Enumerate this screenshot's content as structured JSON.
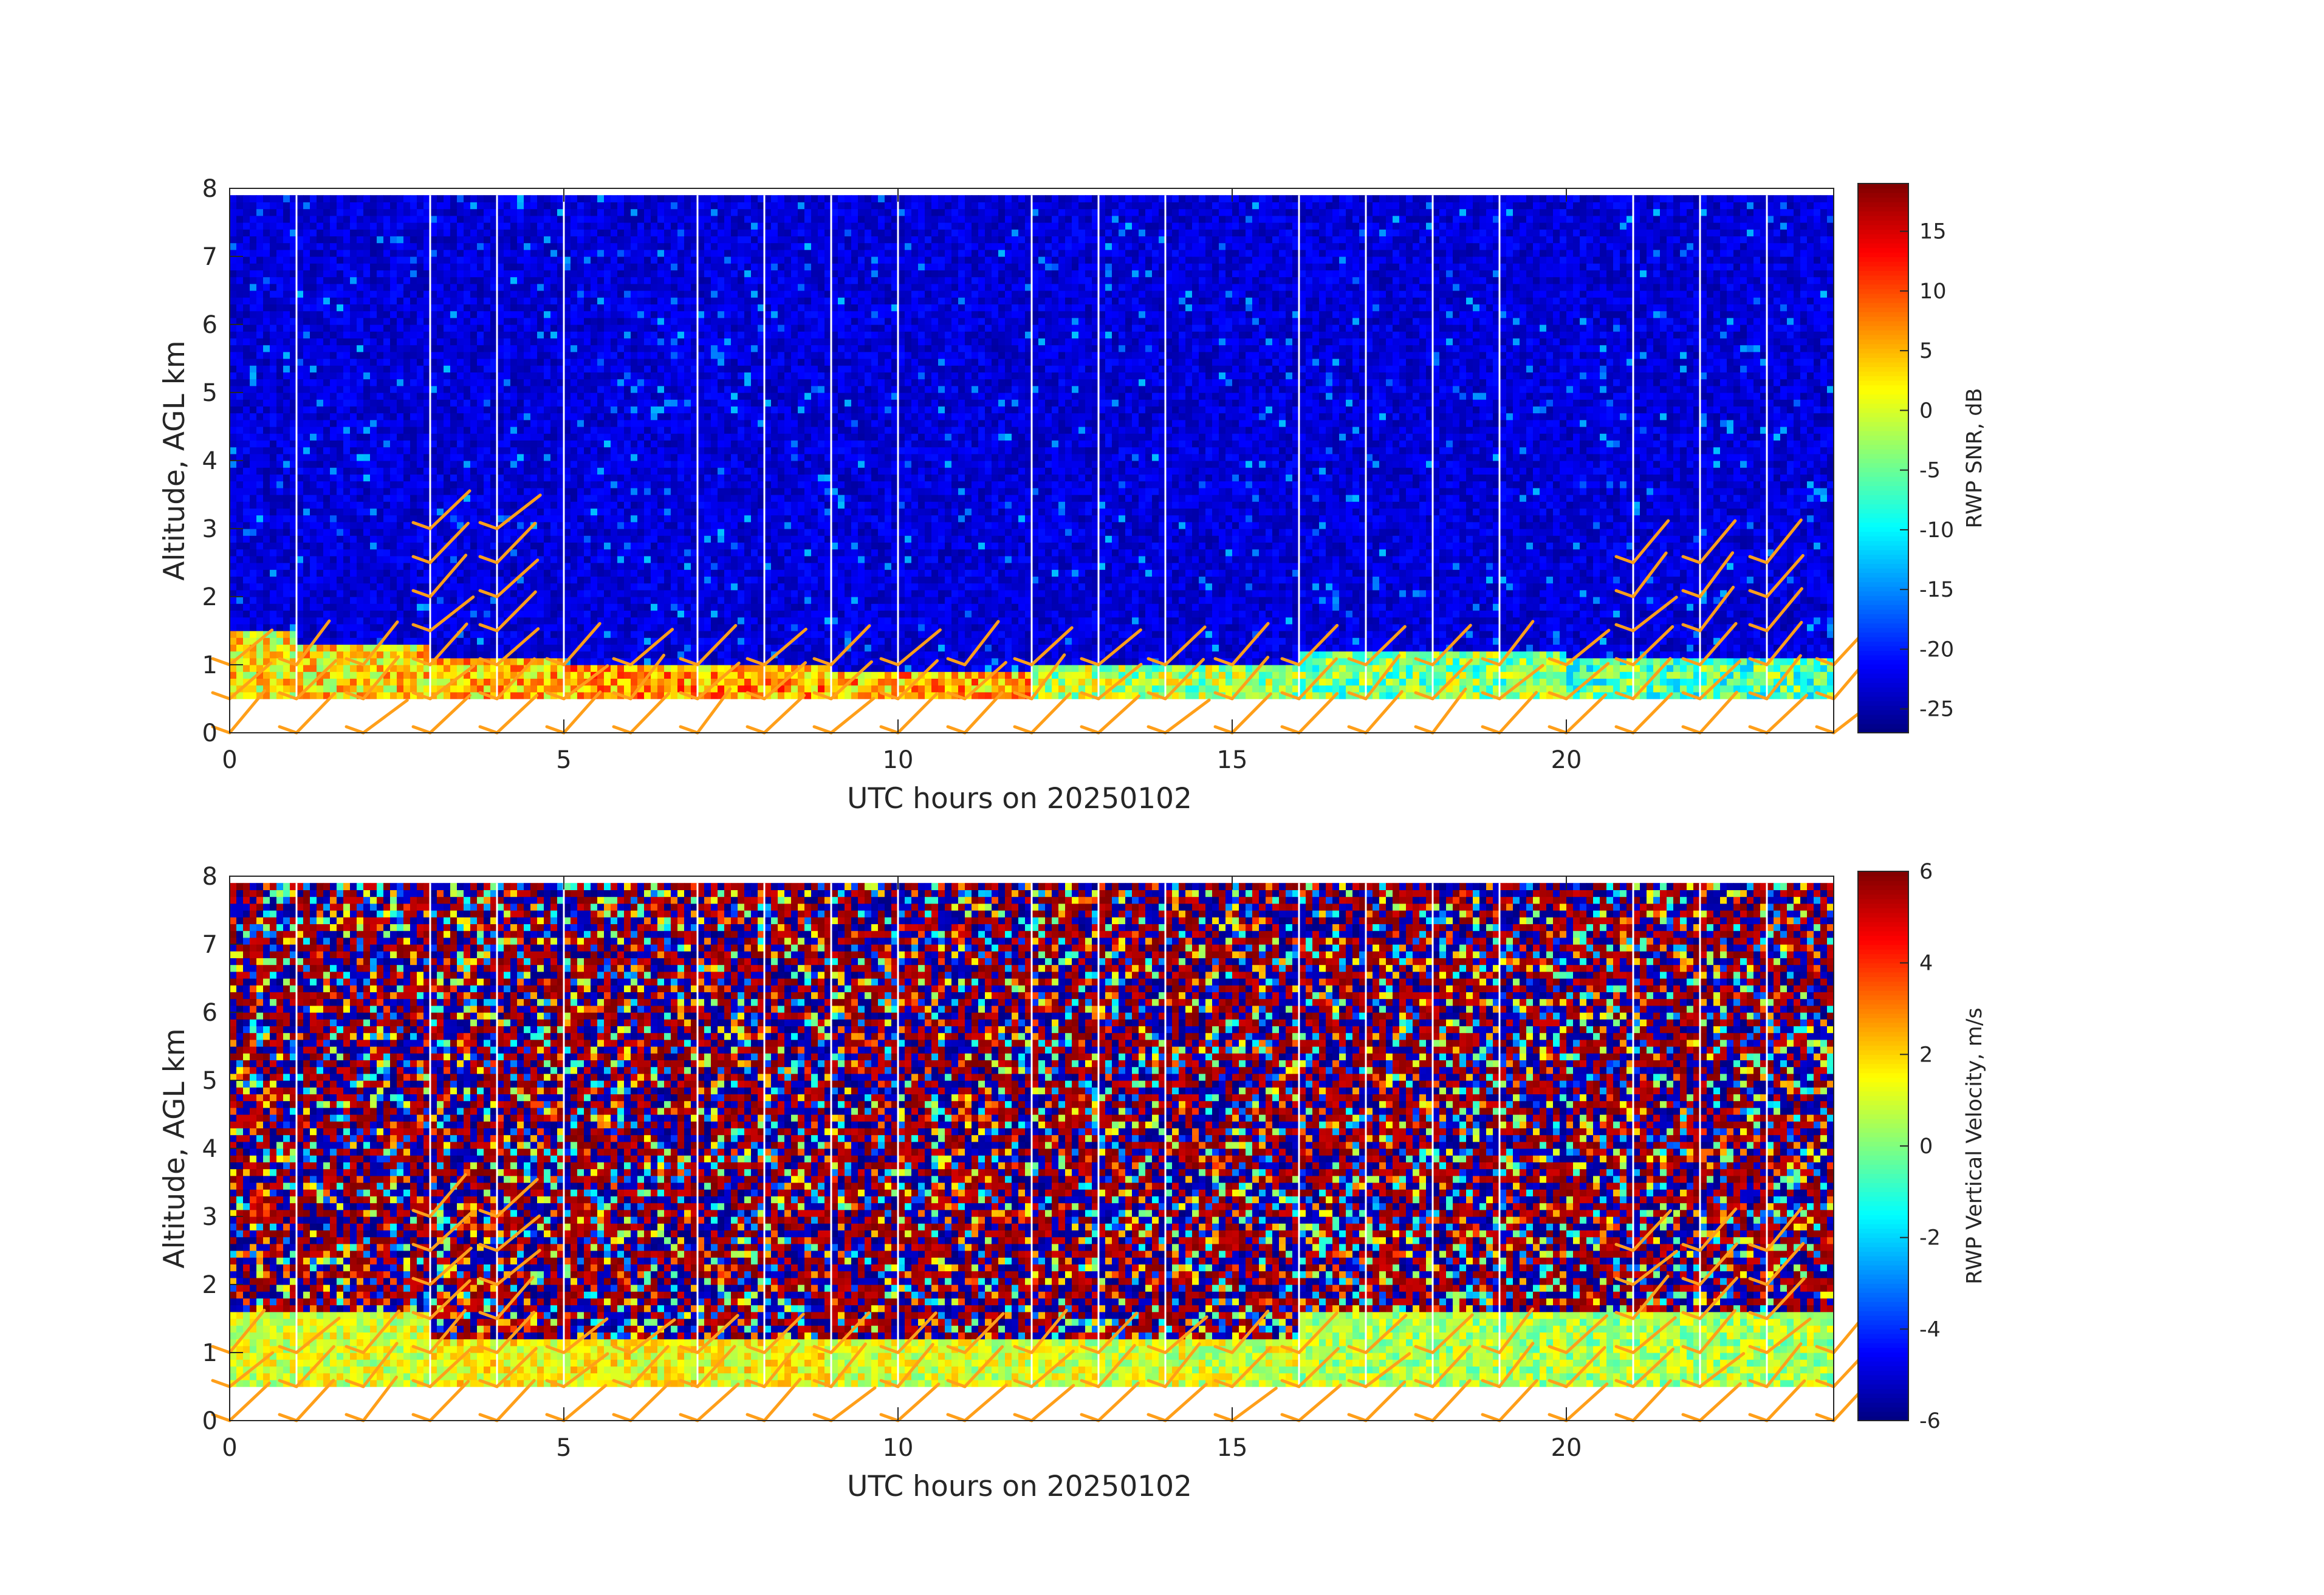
{
  "chart_data": [
    {
      "type": "heatmap",
      "xlabel": "UTC hours on 20250102",
      "ylabel": "Altitude, AGL km",
      "xlim": [
        0,
        24
      ],
      "ylim": [
        0,
        8
      ],
      "xticks": [
        0,
        5,
        10,
        15,
        20
      ],
      "yticks": [
        0,
        1,
        2,
        3,
        4,
        5,
        6,
        7,
        8
      ],
      "colorbar": {
        "label": "RWP SNR, dB",
        "range": [
          -27,
          19
        ],
        "ticks": [
          15,
          10,
          5,
          0,
          -5,
          -10,
          -15,
          -20,
          -25
        ],
        "colormap": "jet"
      },
      "field": "snr",
      "data_altitude_range_km": [
        0.5,
        7.9
      ],
      "background_value": -23,
      "boundary_layer": [
        {
          "x0": 0,
          "x1": 1,
          "top_km": 1.5,
          "value": 2
        },
        {
          "x0": 1,
          "x1": 3,
          "top_km": 1.3,
          "value": 3
        },
        {
          "x0": 3,
          "x1": 5,
          "top_km": 1.1,
          "value": 4
        },
        {
          "x0": 5,
          "x1": 9,
          "top_km": 1.0,
          "value": 6
        },
        {
          "x0": 9,
          "x1": 12,
          "top_km": 0.9,
          "value": 5
        },
        {
          "x0": 12,
          "x1": 16,
          "top_km": 1.0,
          "value": -2
        },
        {
          "x0": 16,
          "x1": 20,
          "top_km": 1.2,
          "value": -4
        },
        {
          "x0": 20,
          "x1": 24,
          "top_km": 1.1,
          "value": -6
        }
      ]
    },
    {
      "type": "heatmap",
      "xlabel": "UTC hours on 20250102",
      "ylabel": "Altitude, AGL km",
      "xlim": [
        0,
        24
      ],
      "ylim": [
        0,
        8
      ],
      "xticks": [
        0,
        5,
        10,
        15,
        20
      ],
      "yticks": [
        0,
        1,
        2,
        3,
        4,
        5,
        6,
        7,
        8
      ],
      "colorbar": {
        "label": "RWP Vertical Velocity, m/s",
        "range": [
          -6,
          6
        ],
        "ticks": [
          6,
          4,
          2,
          0,
          -2,
          -4,
          -6
        ],
        "colormap": "jet"
      },
      "field": "vertical_velocity",
      "data_altitude_range_km": [
        0.5,
        7.9
      ],
      "boundary_layer": [
        {
          "x0": 0,
          "x1": 3,
          "top_km": 1.6,
          "value": 1
        },
        {
          "x0": 3,
          "x1": 9,
          "top_km": 1.2,
          "value": 1.5
        },
        {
          "x0": 9,
          "x1": 16,
          "top_km": 1.2,
          "value": 1
        },
        {
          "x0": 16,
          "x1": 24,
          "top_km": 1.6,
          "value": 0.5
        }
      ]
    }
  ],
  "scan_gap_hours": [
    1,
    3,
    4,
    5,
    7,
    8,
    9,
    10,
    12,
    13,
    14,
    16,
    17,
    18,
    19,
    21,
    22,
    23
  ],
  "wind_barbs": {
    "color": "#ff9f1a",
    "times": [
      0,
      1,
      2,
      3,
      4,
      5,
      6,
      7,
      8,
      9,
      10,
      11,
      12,
      13,
      14,
      15,
      16,
      17,
      18,
      19,
      20,
      21,
      22,
      23,
      24
    ],
    "levels_km": [
      0,
      0.5,
      1,
      1.5,
      2,
      2.5,
      3
    ]
  }
}
